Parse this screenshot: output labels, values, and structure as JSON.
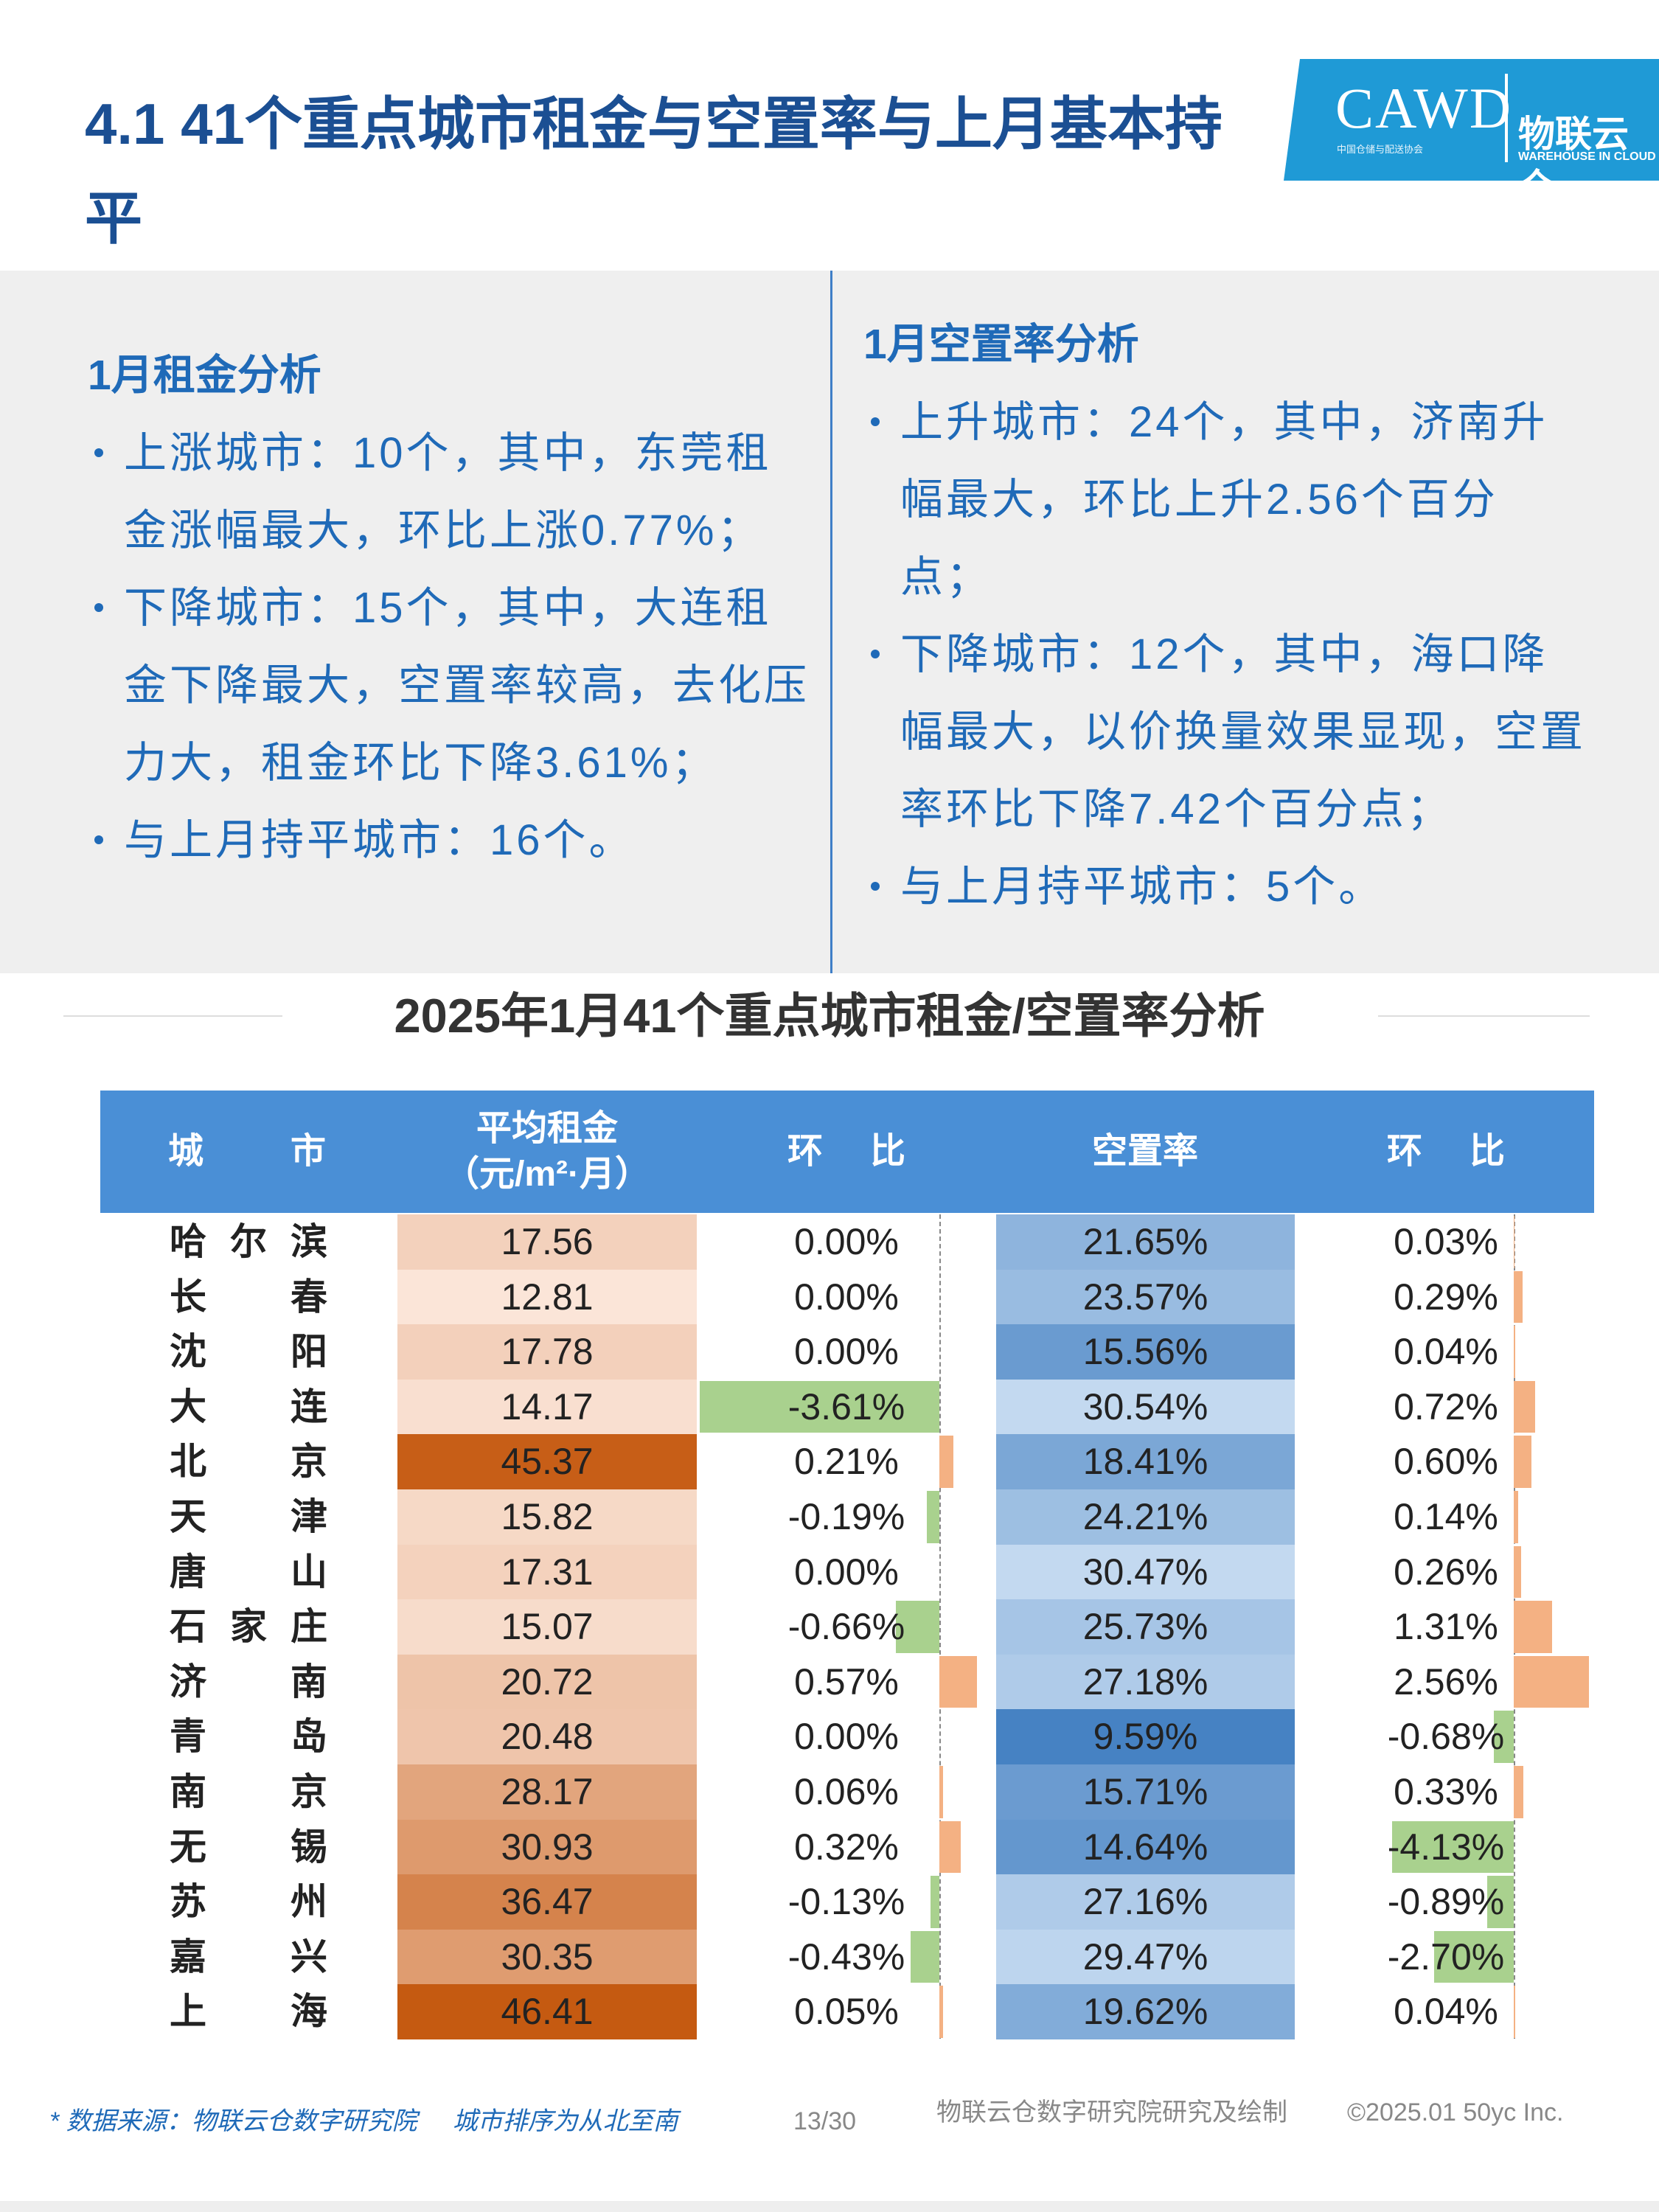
{
  "header": {
    "title": "4.1 41个重点城市租金与空置率与上月基本持平",
    "logo": {
      "name": "CAWD",
      "org": "中国仓储与配送协会",
      "brand": "物联云仓",
      "brand_en": "WAREHOUSE IN CLOUD"
    }
  },
  "analysis": [
    {
      "heading": "1月租金分析",
      "bullets": [
        "上涨城市：10个，其中，东莞租金涨幅最大，环比上涨0.77%；",
        "下降城市：15个，其中，大连租金下降最大，空置率较高，去化压力大，租金环比下降3.61%；",
        "与上月持平城市：16个。"
      ]
    },
    {
      "heading": "1月空置率分析",
      "bullets": [
        "上升城市：24个，其中，济南升幅最大，环比上升2.56个百分点；",
        "下降城市：12个，其中，海口降幅最大，以价换量效果显现，空置率环比下降7.42个百分点；",
        "与上月持平城市：5个。"
      ]
    }
  ],
  "table": {
    "title": "2025年1月41个重点城市租金/空置率分析",
    "columns": [
      {
        "label": "城市"
      },
      {
        "label": "平均租金",
        "unit": "（元/m²·月）"
      },
      {
        "label": "环比"
      },
      {
        "label": "空置率"
      },
      {
        "label": "环比"
      }
    ],
    "rows": [
      {
        "city": "哈尔滨",
        "rent": 17.56,
        "rent_change": {
          "value": 0.0,
          "label": "0.00%"
        },
        "vacancy": {
          "value": 21.65,
          "label": "21.65%"
        },
        "vacancy_change": {
          "value": 0.03,
          "label": "0.03%"
        }
      },
      {
        "city": "长春",
        "rent": 12.81,
        "rent_change": {
          "value": 0.0,
          "label": "0.00%"
        },
        "vacancy": {
          "value": 23.57,
          "label": "23.57%"
        },
        "vacancy_change": {
          "value": 0.29,
          "label": "0.29%"
        }
      },
      {
        "city": "沈阳",
        "rent": 17.78,
        "rent_change": {
          "value": 0.0,
          "label": "0.00%"
        },
        "vacancy": {
          "value": 15.56,
          "label": "15.56%"
        },
        "vacancy_change": {
          "value": 0.04,
          "label": "0.04%"
        }
      },
      {
        "city": "大连",
        "rent": 14.17,
        "rent_change": {
          "value": -3.61,
          "label": "-3.61%"
        },
        "vacancy": {
          "value": 30.54,
          "label": "30.54%"
        },
        "vacancy_change": {
          "value": 0.72,
          "label": "0.72%"
        }
      },
      {
        "city": "北京",
        "rent": 45.37,
        "rent_change": {
          "value": 0.21,
          "label": "0.21%"
        },
        "vacancy": {
          "value": 18.41,
          "label": "18.41%"
        },
        "vacancy_change": {
          "value": 0.6,
          "label": "0.60%"
        }
      },
      {
        "city": "天津",
        "rent": 15.82,
        "rent_change": {
          "value": -0.19,
          "label": "-0.19%"
        },
        "vacancy": {
          "value": 24.21,
          "label": "24.21%"
        },
        "vacancy_change": {
          "value": 0.14,
          "label": "0.14%"
        }
      },
      {
        "city": "唐山",
        "rent": 17.31,
        "rent_change": {
          "value": 0.0,
          "label": "0.00%"
        },
        "vacancy": {
          "value": 30.47,
          "label": "30.47%"
        },
        "vacancy_change": {
          "value": 0.26,
          "label": "0.26%"
        }
      },
      {
        "city": "石家庄",
        "rent": 15.07,
        "rent_change": {
          "value": -0.66,
          "label": "-0.66%"
        },
        "vacancy": {
          "value": 25.73,
          "label": "25.73%"
        },
        "vacancy_change": {
          "value": 1.31,
          "label": "1.31%"
        }
      },
      {
        "city": "济南",
        "rent": 20.72,
        "rent_change": {
          "value": 0.57,
          "label": "0.57%"
        },
        "vacancy": {
          "value": 27.18,
          "label": "27.18%"
        },
        "vacancy_change": {
          "value": 2.56,
          "label": "2.56%"
        }
      },
      {
        "city": "青岛",
        "rent": 20.48,
        "rent_change": {
          "value": 0.0,
          "label": "0.00%"
        },
        "vacancy": {
          "value": 9.59,
          "label": "9.59%"
        },
        "vacancy_change": {
          "value": -0.68,
          "label": "-0.68%"
        }
      },
      {
        "city": "南京",
        "rent": 28.17,
        "rent_change": {
          "value": 0.06,
          "label": "0.06%"
        },
        "vacancy": {
          "value": 15.71,
          "label": "15.71%"
        },
        "vacancy_change": {
          "value": 0.33,
          "label": "0.33%"
        }
      },
      {
        "city": "无锡",
        "rent": 30.93,
        "rent_change": {
          "value": 0.32,
          "label": "0.32%"
        },
        "vacancy": {
          "value": 14.64,
          "label": "14.64%"
        },
        "vacancy_change": {
          "value": -4.13,
          "label": "-4.13%"
        }
      },
      {
        "city": "苏州",
        "rent": 36.47,
        "rent_change": {
          "value": -0.13,
          "label": "-0.13%"
        },
        "vacancy": {
          "value": 27.16,
          "label": "27.16%"
        },
        "vacancy_change": {
          "value": -0.89,
          "label": "-0.89%"
        }
      },
      {
        "city": "嘉兴",
        "rent": 30.35,
        "rent_change": {
          "value": -0.43,
          "label": "-0.43%"
        },
        "vacancy": {
          "value": 29.47,
          "label": "29.47%"
        },
        "vacancy_change": {
          "value": -2.7,
          "label": "-2.70%"
        }
      },
      {
        "city": "上海",
        "rent": 46.41,
        "rent_change": {
          "value": 0.05,
          "label": "0.05%"
        },
        "vacancy": {
          "value": 19.62,
          "label": "19.62%"
        },
        "vacancy_change": {
          "value": 0.04,
          "label": "0.04%"
        }
      }
    ]
  },
  "footer": {
    "source": "* 数据来源：物联云仓数字研究院",
    "note": "城市排序为从北至南",
    "page": "13/30",
    "credit": "物联云仓数字研究院研究及绘制",
    "copyright": "©2025.01 50yc Inc."
  }
}
